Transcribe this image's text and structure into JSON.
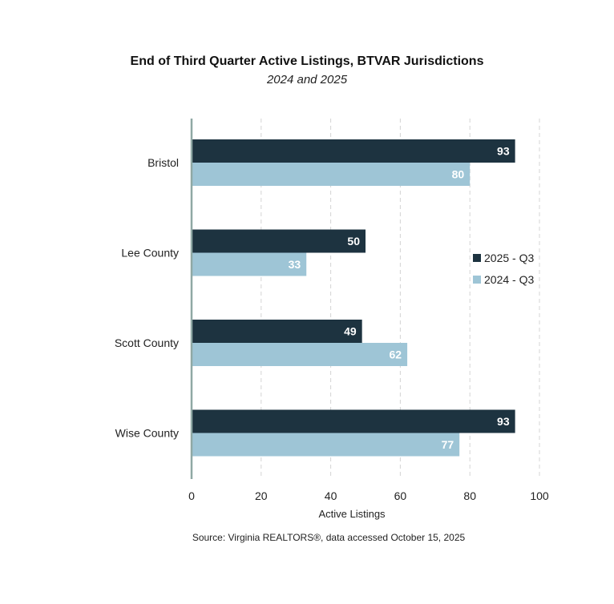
{
  "chart_data": {
    "type": "bar",
    "orientation": "horizontal",
    "title": "End of Third Quarter Active Listings, BTVAR Jurisdictions",
    "subtitle": "2024 and 2025",
    "categories": [
      "Bristol",
      "Lee County",
      "Scott County",
      "Wise County"
    ],
    "series": [
      {
        "name": "2025 - Q3",
        "color": "#1d3340",
        "values": [
          93,
          50,
          49,
          93
        ]
      },
      {
        "name": "2024 - Q3",
        "color": "#9ec5d6",
        "values": [
          80,
          33,
          62,
          77
        ]
      }
    ],
    "xlabel": "Active Listings",
    "ylabel": "",
    "xlim": [
      0,
      100
    ],
    "xticks": [
      0,
      20,
      40,
      60,
      80,
      100
    ],
    "grid": "vertical dashed",
    "legend": "right",
    "axis_color": "#8fa8a4"
  },
  "source": "Source: Virginia REALTORS®, data accessed October 15, 2025"
}
